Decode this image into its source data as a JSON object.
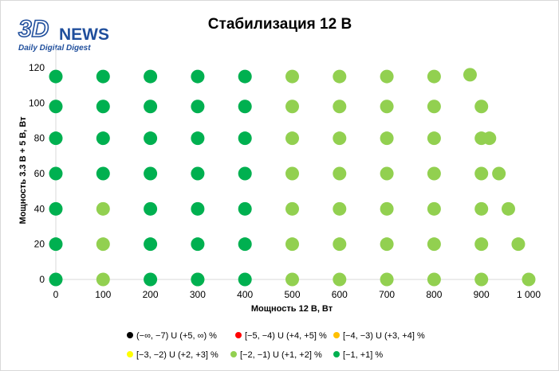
{
  "logo": {
    "brand": "3D",
    "brand_suffix": "NEWS",
    "tagline": "Daily Digital Digest"
  },
  "chart_data": {
    "type": "scatter",
    "title": "Стабилизация 12 В",
    "xlabel": "Мощность  12 В, Вт",
    "ylabel": "Мощность  3.3 В + 5 В, Вт",
    "xlim": [
      0,
      1000
    ],
    "ylim": [
      0,
      120
    ],
    "x_ticks": [
      0,
      100,
      200,
      300,
      400,
      500,
      600,
      700,
      800,
      900,
      1000
    ],
    "x_tick_labels": [
      "0",
      "100",
      "200",
      "300",
      "400",
      "500",
      "600",
      "700",
      "800",
      "900",
      "1 000"
    ],
    "y_ticks": [
      0,
      20,
      40,
      60,
      80,
      100,
      120
    ],
    "y_tick_labels": [
      "0",
      "20",
      "40",
      "60",
      "80",
      "100",
      "120"
    ],
    "grid": false,
    "legend_position": "bottom",
    "series": [
      {
        "name": "(−∞, −7) U (+5, ∞) %",
        "color": "#000000",
        "points": []
      },
      {
        "name": "[−5, −4) U (+4, +5] %",
        "color": "#ff0000",
        "points": []
      },
      {
        "name": "[−4, −3) U (+3, +4] %",
        "color": "#ffc000",
        "points": []
      },
      {
        "name": "[−3, −2) U (+2, +3] %",
        "color": "#ffff00",
        "points": []
      },
      {
        "name": "[−2, −1) U (+1, +2] %",
        "color": "#92d050",
        "points": [
          [
            100,
            0
          ],
          [
            300,
            0
          ],
          [
            500,
            0
          ],
          [
            600,
            0
          ],
          [
            700,
            0
          ],
          [
            800,
            0
          ],
          [
            900,
            0
          ],
          [
            1000,
            0
          ],
          [
            100,
            20
          ],
          [
            500,
            20
          ],
          [
            600,
            20
          ],
          [
            700,
            20
          ],
          [
            800,
            20
          ],
          [
            900,
            20
          ],
          [
            978,
            20
          ],
          [
            100,
            40
          ],
          [
            500,
            40
          ],
          [
            600,
            40
          ],
          [
            700,
            40
          ],
          [
            800,
            40
          ],
          [
            900,
            40
          ],
          [
            957,
            40
          ],
          [
            500,
            60
          ],
          [
            600,
            60
          ],
          [
            700,
            60
          ],
          [
            800,
            60
          ],
          [
            900,
            60
          ],
          [
            937,
            60
          ],
          [
            500,
            80
          ],
          [
            600,
            80
          ],
          [
            700,
            80
          ],
          [
            800,
            80
          ],
          [
            900,
            80
          ],
          [
            917,
            80
          ],
          [
            500,
            98
          ],
          [
            600,
            98
          ],
          [
            700,
            98
          ],
          [
            800,
            98
          ],
          [
            900,
            98
          ],
          [
            500,
            115
          ],
          [
            600,
            115
          ],
          [
            700,
            115
          ],
          [
            800,
            115
          ],
          [
            876,
            116
          ]
        ]
      },
      {
        "name": "[−1, +1] %",
        "color": "#00b050",
        "points": [
          [
            0,
            0
          ],
          [
            200,
            0
          ],
          [
            300,
            0
          ],
          [
            400,
            0
          ],
          [
            0,
            20
          ],
          [
            200,
            20
          ],
          [
            300,
            20
          ],
          [
            400,
            20
          ],
          [
            0,
            40
          ],
          [
            200,
            40
          ],
          [
            300,
            40
          ],
          [
            400,
            40
          ],
          [
            0,
            60
          ],
          [
            100,
            60
          ],
          [
            200,
            60
          ],
          [
            300,
            60
          ],
          [
            400,
            60
          ],
          [
            0,
            80
          ],
          [
            100,
            80
          ],
          [
            200,
            80
          ],
          [
            300,
            80
          ],
          [
            400,
            80
          ],
          [
            0,
            98
          ],
          [
            100,
            98
          ],
          [
            200,
            98
          ],
          [
            300,
            98
          ],
          [
            400,
            98
          ],
          [
            0,
            115
          ],
          [
            100,
            115
          ],
          [
            200,
            115
          ],
          [
            300,
            115
          ],
          [
            400,
            115
          ]
        ]
      }
    ]
  }
}
